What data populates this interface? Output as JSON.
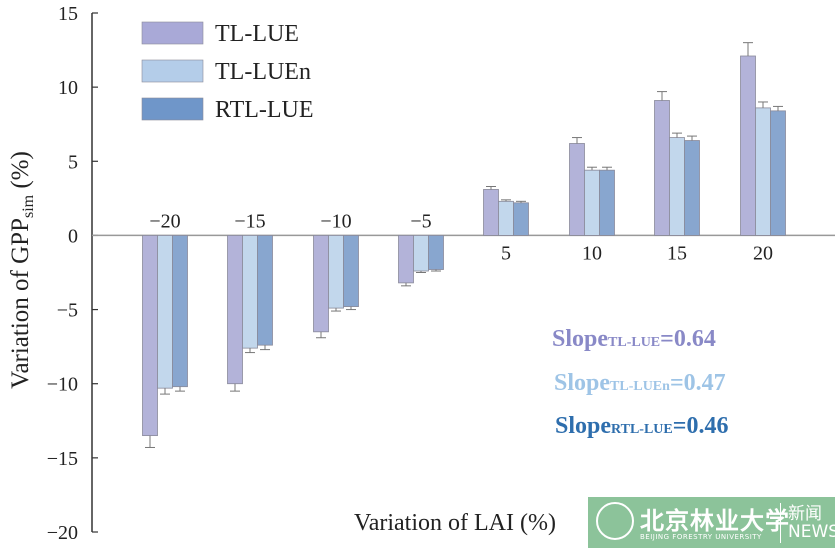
{
  "chart_data": {
    "type": "bar",
    "xlabel": "Variation of LAI (%)",
    "ylabel": "Variation of GPP",
    "ylabel_sub": "sim",
    "ylabel_unit": " (%)",
    "ylim": [
      -20,
      15
    ],
    "yticks": [
      15,
      10,
      5,
      0,
      -5,
      -10,
      -15,
      -20
    ],
    "categories": [
      "−20",
      "−15",
      "−10",
      "−5",
      "5",
      "10",
      "15",
      "20"
    ],
    "series": [
      {
        "name": "TL-LUE",
        "color": "#b3b3d9",
        "legend_color": "#a9a9d7",
        "values": [
          -13.5,
          -10.0,
          -6.5,
          -3.2,
          3.1,
          6.2,
          9.1,
          12.1
        ],
        "errors": [
          0.8,
          0.5,
          0.4,
          0.2,
          0.2,
          0.4,
          0.6,
          0.9
        ]
      },
      {
        "name": "TL-LUEn",
        "color": "#c2d7ec",
        "legend_color": "#b4cde9",
        "values": [
          -10.3,
          -7.6,
          -4.9,
          -2.4,
          2.3,
          4.4,
          6.6,
          8.6
        ],
        "errors": [
          0.4,
          0.3,
          0.2,
          0.1,
          0.1,
          0.2,
          0.3,
          0.4
        ]
      },
      {
        "name": "RTL-LUE",
        "color": "#88a6cf",
        "legend_color": "#6f96c9",
        "values": [
          -10.2,
          -7.4,
          -4.8,
          -2.3,
          2.2,
          4.4,
          6.4,
          8.4
        ],
        "errors": [
          0.3,
          0.3,
          0.2,
          0.1,
          0.1,
          0.2,
          0.3,
          0.3
        ]
      }
    ],
    "legend_placement": "top-left",
    "grid": false,
    "annotations": [
      {
        "label": "Slope",
        "sub": "TL-LUE",
        "value": "=0.64",
        "color": "#8989c7"
      },
      {
        "label": "Slope",
        "sub": "TL-LUEn",
        "value": "=0.47",
        "color": "#9ec4e6"
      },
      {
        "label": "Slope",
        "sub": "RTL-LUE",
        "value": "=0.46",
        "color": "#2e6ead"
      }
    ]
  },
  "logo": {
    "cn": "北京林业大学",
    "en": "BEIJING FORESTRY UNIVERSITY",
    "news_cn": "新闻",
    "news_en": "NEWS"
  }
}
